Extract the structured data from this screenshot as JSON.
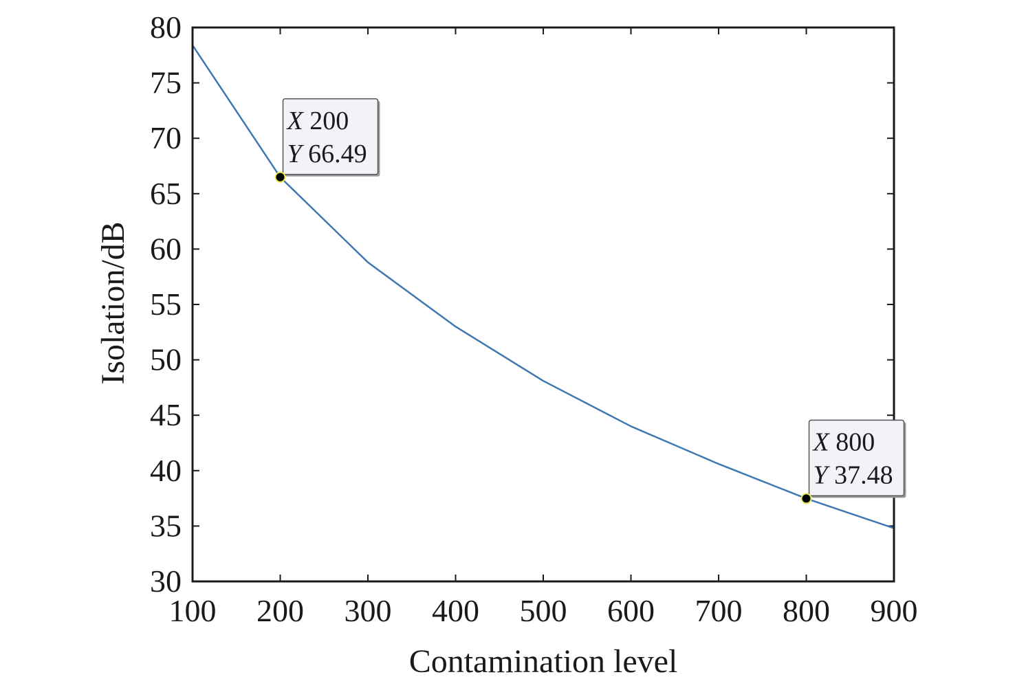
{
  "chart_data": {
    "type": "line",
    "title": "",
    "xlabel": "Contamination level",
    "ylabel": "Isolation/dB",
    "xlim": [
      100,
      900
    ],
    "ylim": [
      30,
      80
    ],
    "x_ticks": [
      100,
      200,
      300,
      400,
      500,
      600,
      700,
      800,
      900
    ],
    "y_ticks": [
      30,
      35,
      40,
      45,
      50,
      55,
      60,
      65,
      70,
      75,
      80
    ],
    "grid": false,
    "line_color": "#3f78b0",
    "series": [
      {
        "x": [
          100,
          200,
          300,
          400,
          500,
          600,
          700,
          800,
          900
        ],
        "y": [
          78.4,
          66.49,
          58.8,
          53.0,
          48.1,
          44.0,
          40.6,
          37.48,
          34.8
        ]
      }
    ],
    "datatips": [
      {
        "x_key": "X",
        "x_value": "200",
        "y_key": "Y",
        "y_value": "66.49",
        "x": 200,
        "y": 66.49
      },
      {
        "x_key": "X",
        "x_value": "800",
        "y_key": "Y",
        "y_value": "37.48",
        "x": 800,
        "y": 37.48
      }
    ]
  }
}
